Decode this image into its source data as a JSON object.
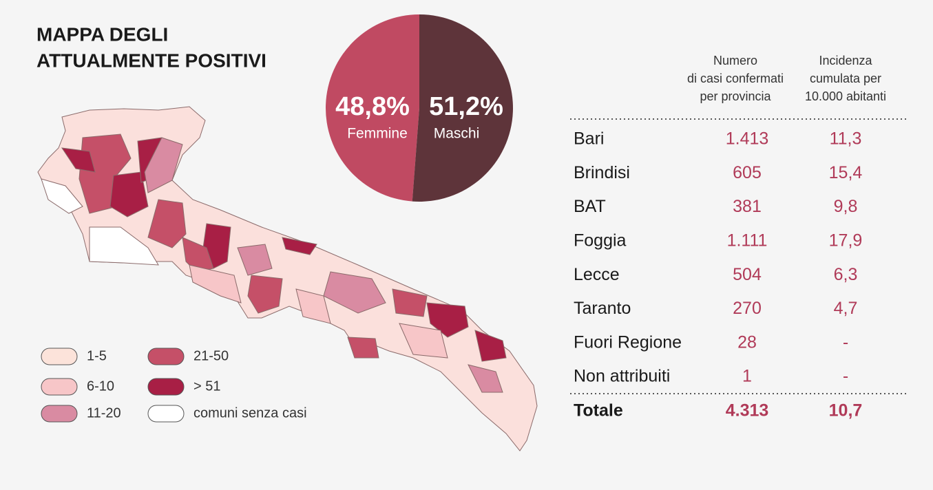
{
  "title": [
    "MAPPA DEGLI",
    "ATTUALMENTE POSITIVI"
  ],
  "chart_data": {
    "type": "pie",
    "categories": [
      "Femmine",
      "Maschi"
    ],
    "values": [
      48.8,
      51.2
    ],
    "value_labels": [
      "48,8%",
      "51,2%"
    ],
    "colors": [
      "#c04a62",
      "#5e343a"
    ]
  },
  "legend": [
    {
      "label": "1-5",
      "color": "#fce3da"
    },
    {
      "label": "6-10",
      "color": "#f7c6c8"
    },
    {
      "label": "11-20",
      "color": "#d98ba2"
    },
    {
      "label": "21-50",
      "color": "#c55068"
    },
    {
      "label": "> 51",
      "color": "#a81f45"
    },
    {
      "label": "comuni senza casi",
      "color": "#ffffff"
    }
  ],
  "table": {
    "headers": [
      [
        "Numero",
        "di casi confermati",
        "per provincia"
      ],
      [
        "Incidenza",
        "cumulata per",
        "10.000 abitanti"
      ]
    ],
    "rows": [
      [
        "Bari",
        "1.413",
        "11,3"
      ],
      [
        "Brindisi",
        "605",
        "15,4"
      ],
      [
        "BAT",
        "381",
        "9,8"
      ],
      [
        "Foggia",
        "1.111",
        "17,9"
      ],
      [
        "Lecce",
        "504",
        "6,3"
      ],
      [
        "Taranto",
        "270",
        "4,7"
      ],
      [
        "Fuori Regione",
        "28",
        "-"
      ],
      [
        "Non attribuiti",
        "1",
        "-"
      ]
    ],
    "total": [
      "Totale",
      "4.313",
      "10,7"
    ]
  }
}
